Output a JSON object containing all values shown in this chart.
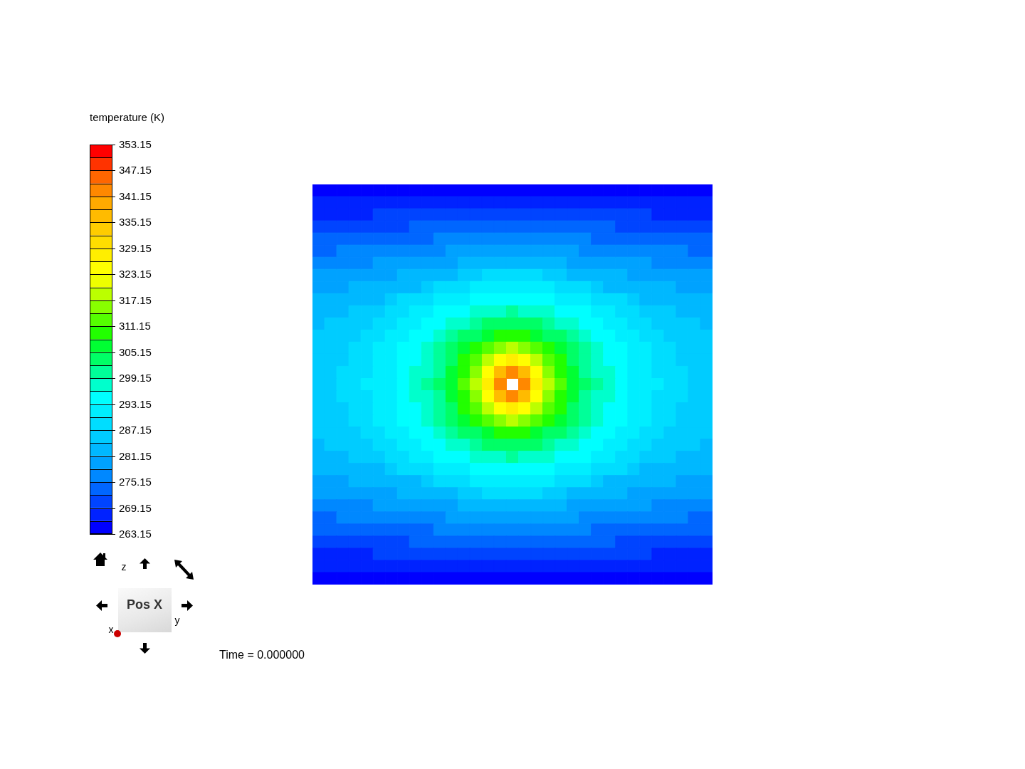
{
  "chart_data": {
    "type": "heatmap",
    "clabel": "temperature (K)",
    "annotations": [
      "Time = 0.000000",
      "Pos X",
      "z",
      "y",
      "x"
    ],
    "tick_labels": false,
    "categories": [
      null,
      null,
      null,
      null,
      null,
      null,
      null,
      null,
      null,
      null,
      null,
      null,
      null,
      null,
      null,
      null,
      null,
      null,
      null,
      null,
      null,
      null,
      null,
      null,
      null,
      null,
      null,
      null,
      null,
      null,
      null,
      null,
      null
    ],
    "y_categories": [
      null,
      null,
      null,
      null,
      null,
      null,
      null,
      null,
      null,
      null,
      null,
      null,
      null,
      null,
      null,
      null,
      null,
      null,
      null,
      null,
      null,
      null,
      null,
      null,
      null,
      null,
      null,
      null,
      null,
      null,
      null,
      null,
      null
    ],
    "clim": [
      263.15,
      353.15
    ],
    "cticks": [
      263.15,
      269.15,
      275.15,
      281.15,
      287.15,
      293.15,
      299.15,
      305.15,
      311.15,
      317.15,
      323.15,
      329.15,
      335.15,
      341.15,
      347.15,
      353.15
    ],
    "cells": [
      [
        265,
        265,
        265,
        265,
        265,
        265,
        265,
        265,
        265,
        265,
        265,
        265,
        265,
        265,
        265,
        265,
        265,
        265,
        265,
        265,
        265,
        265,
        265,
        265,
        265,
        265,
        265,
        265,
        265,
        265,
        265,
        265,
        265
      ],
      [
        268,
        268,
        268,
        268,
        268,
        268,
        268,
        268,
        268,
        268,
        268,
        268,
        268,
        268,
        268,
        268,
        268,
        268,
        268,
        268,
        268,
        268,
        268,
        268,
        268,
        268,
        268,
        268,
        268,
        268,
        268,
        268,
        268
      ],
      [
        268,
        268,
        268,
        268,
        268,
        271,
        271,
        271,
        271,
        271,
        271,
        271,
        271,
        271,
        271,
        271,
        271,
        271,
        271,
        271,
        271,
        271,
        271,
        271,
        271,
        271,
        271,
        271,
        268,
        268,
        268,
        268,
        268
      ],
      [
        271,
        271,
        271,
        271,
        271,
        271,
        271,
        271,
        274,
        274,
        274,
        274,
        274,
        274,
        274,
        274,
        274,
        274,
        274,
        274,
        274,
        274,
        274,
        274,
        274,
        271,
        271,
        271,
        271,
        271,
        271,
        271,
        271
      ],
      [
        274,
        274,
        274,
        274,
        274,
        274,
        274,
        274,
        274,
        274,
        277,
        277,
        277,
        277,
        277,
        277,
        277,
        277,
        277,
        277,
        277,
        277,
        277,
        274,
        274,
        274,
        274,
        274,
        274,
        274,
        274,
        274,
        274
      ],
      [
        274,
        274,
        277,
        277,
        277,
        277,
        277,
        277,
        277,
        277,
        277,
        280,
        280,
        280,
        280,
        280,
        280,
        280,
        280,
        280,
        280,
        280,
        277,
        277,
        277,
        277,
        277,
        277,
        277,
        277,
        277,
        274,
        274
      ],
      [
        277,
        277,
        277,
        277,
        277,
        280,
        280,
        280,
        280,
        280,
        280,
        280,
        283,
        283,
        283,
        283,
        283,
        283,
        283,
        283,
        283,
        280,
        280,
        280,
        280,
        280,
        280,
        280,
        277,
        277,
        277,
        277,
        277
      ],
      [
        280,
        280,
        280,
        280,
        280,
        280,
        280,
        283,
        283,
        283,
        283,
        283,
        286,
        286,
        289,
        289,
        289,
        289,
        289,
        286,
        286,
        283,
        283,
        283,
        283,
        283,
        280,
        280,
        280,
        280,
        280,
        280,
        280
      ],
      [
        280,
        280,
        280,
        283,
        283,
        283,
        283,
        283,
        283,
        286,
        289,
        289,
        289,
        292,
        292,
        292,
        292,
        292,
        292,
        292,
        289,
        289,
        289,
        286,
        283,
        283,
        283,
        283,
        283,
        283,
        280,
        280,
        280
      ],
      [
        283,
        283,
        283,
        283,
        283,
        283,
        286,
        289,
        289,
        289,
        292,
        292,
        292,
        295,
        295,
        295,
        295,
        295,
        295,
        295,
        292,
        292,
        292,
        289,
        289,
        289,
        286,
        283,
        283,
        283,
        283,
        283,
        283
      ],
      [
        283,
        283,
        283,
        286,
        286,
        286,
        289,
        289,
        292,
        292,
        295,
        295,
        295,
        298,
        298,
        298,
        301,
        298,
        298,
        298,
        295,
        295,
        295,
        292,
        292,
        289,
        289,
        286,
        286,
        286,
        283,
        283,
        283
      ],
      [
        283,
        286,
        286,
        286,
        286,
        289,
        289,
        292,
        292,
        295,
        295,
        298,
        298,
        301,
        304,
        304,
        304,
        304,
        304,
        301,
        298,
        298,
        295,
        295,
        292,
        292,
        289,
        289,
        286,
        286,
        286,
        286,
        283
      ],
      [
        286,
        286,
        286,
        286,
        289,
        289,
        292,
        292,
        295,
        295,
        298,
        301,
        304,
        304,
        307,
        310,
        310,
        310,
        307,
        304,
        304,
        301,
        298,
        295,
        295,
        292,
        292,
        289,
        289,
        286,
        286,
        286,
        286
      ],
      [
        286,
        286,
        286,
        289,
        289,
        292,
        292,
        295,
        295,
        298,
        301,
        304,
        307,
        310,
        313,
        316,
        319,
        316,
        313,
        310,
        307,
        304,
        301,
        298,
        295,
        295,
        292,
        292,
        289,
        289,
        286,
        286,
        286
      ],
      [
        286,
        286,
        286,
        289,
        289,
        292,
        292,
        295,
        295,
        298,
        301,
        304,
        310,
        313,
        319,
        325,
        328,
        325,
        319,
        313,
        310,
        304,
        301,
        298,
        295,
        295,
        292,
        292,
        289,
        289,
        286,
        286,
        286
      ],
      [
        286,
        286,
        289,
        289,
        289,
        292,
        292,
        295,
        298,
        298,
        301,
        307,
        310,
        316,
        325,
        337,
        343,
        337,
        325,
        316,
        310,
        307,
        301,
        298,
        298,
        295,
        292,
        292,
        289,
        289,
        289,
        286,
        286
      ],
      [
        286,
        286,
        289,
        289,
        292,
        292,
        292,
        295,
        298,
        301,
        304,
        307,
        313,
        319,
        328,
        343,
        null,
        343,
        328,
        319,
        313,
        307,
        304,
        301,
        298,
        295,
        292,
        292,
        292,
        289,
        289,
        286,
        286
      ],
      [
        286,
        286,
        289,
        289,
        289,
        292,
        292,
        295,
        298,
        298,
        301,
        307,
        310,
        316,
        325,
        337,
        343,
        337,
        325,
        316,
        310,
        307,
        301,
        298,
        298,
        295,
        292,
        292,
        289,
        289,
        289,
        286,
        286
      ],
      [
        286,
        286,
        286,
        289,
        289,
        292,
        292,
        295,
        295,
        298,
        301,
        304,
        310,
        313,
        319,
        325,
        328,
        325,
        319,
        313,
        310,
        304,
        301,
        298,
        295,
        295,
        292,
        292,
        289,
        289,
        286,
        286,
        286
      ],
      [
        286,
        286,
        286,
        289,
        289,
        292,
        292,
        295,
        295,
        298,
        301,
        304,
        307,
        310,
        313,
        316,
        319,
        316,
        313,
        310,
        307,
        304,
        301,
        298,
        295,
        295,
        292,
        292,
        289,
        289,
        286,
        286,
        286
      ],
      [
        286,
        286,
        286,
        286,
        289,
        289,
        292,
        292,
        295,
        295,
        298,
        301,
        304,
        304,
        307,
        310,
        310,
        310,
        307,
        304,
        304,
        301,
        298,
        295,
        295,
        292,
        292,
        289,
        289,
        286,
        286,
        286,
        286
      ],
      [
        283,
        286,
        286,
        286,
        286,
        289,
        289,
        292,
        292,
        295,
        295,
        298,
        298,
        301,
        304,
        304,
        304,
        304,
        304,
        301,
        298,
        298,
        295,
        295,
        292,
        292,
        289,
        289,
        286,
        286,
        286,
        286,
        283
      ],
      [
        283,
        283,
        283,
        286,
        286,
        286,
        289,
        289,
        292,
        292,
        295,
        295,
        295,
        298,
        298,
        298,
        301,
        298,
        298,
        298,
        295,
        295,
        295,
        292,
        292,
        289,
        289,
        286,
        286,
        286,
        283,
        283,
        283
      ],
      [
        283,
        283,
        283,
        283,
        283,
        283,
        286,
        289,
        289,
        289,
        292,
        292,
        292,
        295,
        295,
        295,
        295,
        295,
        295,
        295,
        292,
        292,
        292,
        289,
        289,
        289,
        286,
        283,
        283,
        283,
        283,
        283,
        283
      ],
      [
        280,
        280,
        280,
        283,
        283,
        283,
        283,
        283,
        283,
        286,
        289,
        289,
        289,
        292,
        292,
        292,
        292,
        292,
        292,
        292,
        289,
        289,
        289,
        286,
        283,
        283,
        283,
        283,
        283,
        283,
        280,
        280,
        280
      ],
      [
        280,
        280,
        280,
        280,
        280,
        280,
        280,
        283,
        283,
        283,
        283,
        283,
        286,
        286,
        289,
        289,
        289,
        289,
        289,
        286,
        286,
        283,
        283,
        283,
        283,
        283,
        280,
        280,
        280,
        280,
        280,
        280,
        280
      ],
      [
        277,
        277,
        277,
        277,
        277,
        280,
        280,
        280,
        280,
        280,
        280,
        280,
        283,
        283,
        283,
        283,
        283,
        283,
        283,
        283,
        283,
        280,
        280,
        280,
        280,
        280,
        280,
        280,
        277,
        277,
        277,
        277,
        277
      ],
      [
        274,
        274,
        277,
        277,
        277,
        277,
        277,
        277,
        277,
        277,
        277,
        280,
        280,
        280,
        280,
        280,
        280,
        280,
        280,
        280,
        280,
        280,
        277,
        277,
        277,
        277,
        277,
        277,
        277,
        277,
        277,
        274,
        274
      ],
      [
        274,
        274,
        274,
        274,
        274,
        274,
        274,
        274,
        274,
        274,
        277,
        277,
        277,
        277,
        277,
        277,
        277,
        277,
        277,
        277,
        277,
        277,
        277,
        274,
        274,
        274,
        274,
        274,
        274,
        274,
        274,
        274,
        274
      ],
      [
        271,
        271,
        271,
        271,
        271,
        271,
        271,
        271,
        274,
        274,
        274,
        274,
        274,
        274,
        274,
        274,
        274,
        274,
        274,
        274,
        274,
        274,
        274,
        274,
        274,
        271,
        271,
        271,
        271,
        271,
        271,
        271,
        271
      ],
      [
        268,
        268,
        268,
        268,
        268,
        271,
        271,
        271,
        271,
        271,
        271,
        271,
        271,
        271,
        271,
        271,
        271,
        271,
        271,
        271,
        271,
        271,
        271,
        271,
        271,
        271,
        271,
        271,
        268,
        268,
        268,
        268,
        268
      ],
      [
        268,
        268,
        268,
        268,
        268,
        268,
        268,
        268,
        268,
        268,
        268,
        268,
        268,
        268,
        268,
        268,
        268,
        268,
        268,
        268,
        268,
        268,
        268,
        268,
        268,
        268,
        268,
        268,
        268,
        268,
        268,
        268,
        268
      ],
      [
        265,
        265,
        265,
        265,
        265,
        265,
        265,
        265,
        265,
        265,
        265,
        265,
        265,
        265,
        265,
        265,
        265,
        265,
        265,
        265,
        265,
        265,
        265,
        265,
        265,
        265,
        265,
        265,
        265,
        265,
        265,
        265,
        265
      ]
    ]
  }
}
